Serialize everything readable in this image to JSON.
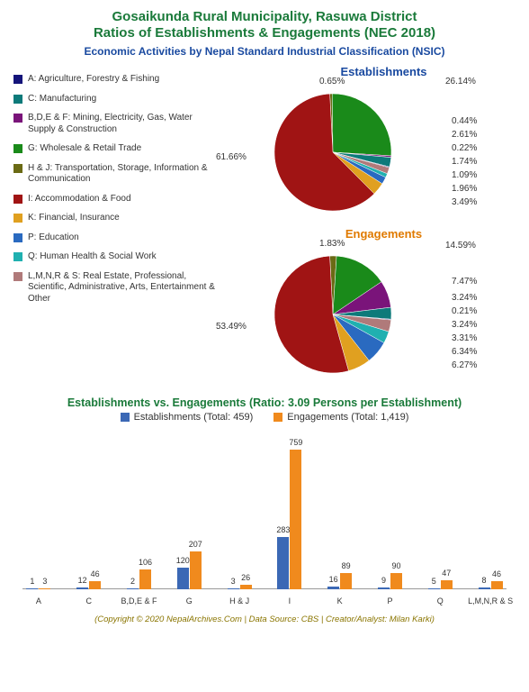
{
  "title_line1": "Gosaikunda Rural Municipality, Rasuwa District",
  "title_line2": "Ratios of Establishments & Engagements (NEC 2018)",
  "subtitle": "Economic Activities by Nepal Standard Industrial Classification (NSIC)",
  "colors": {
    "title": "#1a7a3a",
    "subtitle": "#1a4aa0",
    "est_title": "#1a4aa0",
    "eng_title": "#e07a00",
    "bar_est": "#3b68b5",
    "bar_eng": "#f08a1d",
    "footer": "#8a7500"
  },
  "legend": [
    {
      "code": "A",
      "label": "A: Agriculture, Forestry & Fishing",
      "color": "#14147a"
    },
    {
      "code": "C",
      "label": "C: Manufacturing",
      "color": "#0d7a7a"
    },
    {
      "code": "BDEF",
      "label": "B,D,E & F: Mining, Electricity, Gas, Water Supply & Construction",
      "color": "#7a147a"
    },
    {
      "code": "G",
      "label": "G: Wholesale & Retail Trade",
      "color": "#1a8a1a"
    },
    {
      "code": "HJ",
      "label": "H & J: Transportation, Storage, Information & Communication",
      "color": "#6a6a14"
    },
    {
      "code": "I",
      "label": "I: Accommodation & Food",
      "color": "#a01414"
    },
    {
      "code": "K",
      "label": "K: Financial, Insurance",
      "color": "#e0a020"
    },
    {
      "code": "P",
      "label": "P: Education",
      "color": "#2a6ac0"
    },
    {
      "code": "Q",
      "label": "Q: Human Health & Social Work",
      "color": "#20b0b0"
    },
    {
      "code": "LMNRS",
      "label": "L,M,N,R & S: Real Estate, Professional, Scientific, Administrative, Arts, Entertainment & Other",
      "color": "#b07a7a"
    }
  ],
  "pie_est": {
    "title": "Establishments",
    "slices": [
      {
        "code": "A",
        "pct": 0.22,
        "color": "#14147a"
      },
      {
        "code": "C",
        "pct": 2.61,
        "color": "#0d7a7a"
      },
      {
        "code": "BDEF",
        "pct": 0.44,
        "color": "#7a147a"
      },
      {
        "code": "G",
        "pct": 26.14,
        "color": "#1a8a1a"
      },
      {
        "code": "HJ",
        "pct": 0.65,
        "color": "#6a6a14"
      },
      {
        "code": "I",
        "pct": 61.66,
        "color": "#a01414"
      },
      {
        "code": "K",
        "pct": 3.49,
        "color": "#e0a020"
      },
      {
        "code": "P",
        "pct": 1.96,
        "color": "#2a6ac0"
      },
      {
        "code": "Q",
        "pct": 1.09,
        "color": "#20b0b0"
      },
      {
        "code": "LMNRS",
        "pct": 1.74,
        "color": "#b07a7a"
      }
    ],
    "labels": [
      "0.65%",
      "26.14%",
      "0.44%",
      "2.61%",
      "0.22%",
      "1.74%",
      "1.09%",
      "1.96%",
      "3.49%",
      "61.66%"
    ]
  },
  "pie_eng": {
    "title": "Engagements",
    "slices": [
      {
        "code": "A",
        "pct": 0.21,
        "color": "#14147a"
      },
      {
        "code": "C",
        "pct": 3.24,
        "color": "#0d7a7a"
      },
      {
        "code": "BDEF",
        "pct": 7.47,
        "color": "#7a147a"
      },
      {
        "code": "G",
        "pct": 14.59,
        "color": "#1a8a1a"
      },
      {
        "code": "HJ",
        "pct": 1.83,
        "color": "#6a6a14"
      },
      {
        "code": "I",
        "pct": 53.49,
        "color": "#a01414"
      },
      {
        "code": "K",
        "pct": 6.27,
        "color": "#e0a020"
      },
      {
        "code": "P",
        "pct": 6.34,
        "color": "#2a6ac0"
      },
      {
        "code": "Q",
        "pct": 3.31,
        "color": "#20b0b0"
      },
      {
        "code": "LMNRS",
        "pct": 3.24,
        "color": "#b07a7a"
      }
    ],
    "labels": [
      "1.83%",
      "14.59%",
      "7.47%",
      "3.24%",
      "0.21%",
      "3.24%",
      "3.31%",
      "6.34%",
      "6.27%",
      "53.49%"
    ]
  },
  "bar_section": {
    "title": "Establishments vs. Engagements (Ratio: 3.09 Persons per Establishment)",
    "legend_est": "Establishments (Total: 459)",
    "legend_eng": "Engagements (Total: 1,419)",
    "max": 759,
    "categories": [
      "A",
      "C",
      "B,D,E & F",
      "G",
      "H & J",
      "I",
      "K",
      "P",
      "Q",
      "L,M,N,R & S"
    ],
    "est": [
      1,
      12,
      2,
      120,
      3,
      283,
      16,
      9,
      5,
      8
    ],
    "eng": [
      3,
      46,
      106,
      207,
      26,
      759,
      89,
      90,
      47,
      46
    ]
  },
  "footer": "(Copyright © 2020 NepalArchives.Com | Data Source: CBS | Creator/Analyst: Milan Karki)"
}
